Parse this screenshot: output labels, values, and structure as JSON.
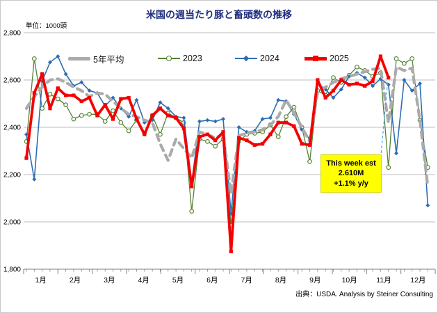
{
  "title": "米国の週当たり豚と畜頭数の推移",
  "unit_label": "単位：1000頭",
  "source": "出典：USDA. Analysis by Steiner Consulting",
  "annotation": {
    "line1": "This week est",
    "line2": "2.610M",
    "line3": "+1.1% y/y"
  },
  "colors": {
    "title": "#1f2d7e",
    "avg": "#ababab",
    "y2023": "#548235",
    "y2024": "#2e6db4",
    "y2025": "#f40000",
    "annotation_bg": "#ffff00",
    "leader": "#4ba6e3",
    "grid": "#a6a6a6"
  },
  "chart_data": {
    "type": "line",
    "title": "米国の週当たり豚と畜頭数の推移",
    "ylabel": "単位：1000頭",
    "ylim": [
      1800,
      2800
    ],
    "ytick_interval": 200,
    "y_axis_labels": [
      "2,800",
      "2,600",
      "2,400",
      "2,200",
      "2,000",
      "1,800"
    ],
    "x_unit": "week-of-year",
    "months": [
      "1月",
      "2月",
      "3月",
      "4月",
      "5月",
      "6月",
      "7月",
      "8月",
      "9月",
      "10月",
      "11月",
      "12月"
    ],
    "legend_position": "top-inside",
    "grid": "horizontal",
    "series": [
      {
        "name": "5年平均",
        "color": "#ababab",
        "style": "thick-dashed",
        "marker": "none",
        "values": [
          2480,
          2530,
          2570,
          2600,
          2605,
          2590,
          2570,
          2555,
          2530,
          2545,
          2540,
          2510,
          2480,
          2455,
          2445,
          2430,
          2420,
          2330,
          2260,
          2350,
          2310,
          2270,
          2380,
          2370,
          2355,
          2370,
          2120,
          2365,
          2375,
          2380,
          2390,
          2410,
          2445,
          2515,
          2460,
          2400,
          2340,
          2550,
          2570,
          2590,
          2605,
          2615,
          2625,
          2635,
          2645,
          2650,
          2420,
          2655,
          2640,
          2650,
          2430,
          2150
        ]
      },
      {
        "name": "2023",
        "color": "#548235",
        "style": "thin",
        "marker": "open-circle",
        "values": [
          2340,
          2690,
          2480,
          2540,
          2520,
          2495,
          2435,
          2450,
          2455,
          2455,
          2425,
          2470,
          2420,
          2385,
          2430,
          2375,
          2450,
          2370,
          2460,
          2440,
          2420,
          2045,
          2350,
          2340,
          2320,
          2350,
          1985,
          2340,
          2370,
          2375,
          2380,
          2410,
          2360,
          2445,
          2485,
          2400,
          2255,
          2555,
          2535,
          2610,
          2590,
          2620,
          2655,
          2640,
          2615,
          2630,
          2230,
          2690,
          2670,
          2690,
          2430,
          2230
        ]
      },
      {
        "name": "2024",
        "color": "#2e6db4",
        "style": "thin",
        "marker": "diamond",
        "values": [
          2370,
          2180,
          2595,
          2675,
          2700,
          2625,
          2575,
          2590,
          2555,
          2545,
          2490,
          2525,
          2480,
          2445,
          2515,
          2420,
          2430,
          2505,
          2480,
          2445,
          2440,
          2165,
          2425,
          2430,
          2425,
          2435,
          2035,
          2400,
          2380,
          2385,
          2435,
          2440,
          2515,
          2510,
          2455,
          2390,
          2350,
          2585,
          2560,
          2525,
          2560,
          2615,
          2630,
          2610,
          2575,
          2605,
          2580,
          2290,
          2600,
          2555,
          2585,
          2070
        ]
      },
      {
        "name": "2025",
        "color": "#f40000",
        "style": "thick",
        "marker": "square",
        "values": [
          2270,
          2545,
          2625,
          2480,
          2565,
          2535,
          2535,
          2510,
          2525,
          2450,
          2495,
          2435,
          2520,
          2525,
          2435,
          2370,
          2450,
          2480,
          2450,
          2440,
          2395,
          2150,
          2360,
          2370,
          2345,
          2380,
          1875,
          2355,
          2345,
          2325,
          2330,
          2370,
          2420,
          2420,
          2405,
          2330,
          2325,
          2600,
          2525,
          2555,
          2600,
          2580,
          2585,
          2575,
          2595,
          2700,
          2610
        ]
      }
    ],
    "annotation": {
      "text": "This week est 2.610M +1.1% y/y",
      "points_to_series": "2025",
      "points_to_value": 2610
    }
  }
}
